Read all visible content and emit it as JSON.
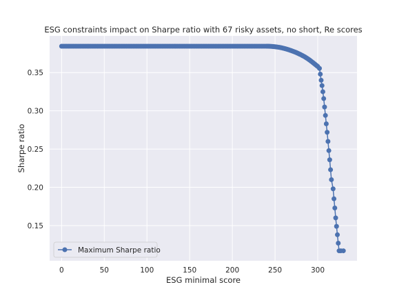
{
  "chart_data": {
    "type": "line",
    "title": "ESG constraints impact on Sharpe ratio with 67 risky assets, no short, Re scores",
    "xlabel": "ESG minimal score",
    "ylabel": "Sharpe ratio",
    "xlim": [
      -14,
      346
    ],
    "ylim": [
      0.104,
      0.398
    ],
    "x_ticks": [
      0,
      50,
      100,
      150,
      200,
      250,
      300
    ],
    "y_ticks": [
      0.15,
      0.2,
      0.25,
      0.3,
      0.35
    ],
    "y_tick_labels": [
      "0.15",
      "0.20",
      "0.25",
      "0.30",
      "0.35"
    ],
    "grid": true,
    "legend_position": "lower-left",
    "background": "#eaeaf2",
    "line_color": "#4c72b0",
    "series": [
      {
        "name": "Maximum Sharpe ratio",
        "marker": "circle",
        "points": [
          [
            0,
            0.3845
          ],
          [
            10,
            0.3845
          ],
          [
            20,
            0.3845
          ],
          [
            30,
            0.3845
          ],
          [
            40,
            0.3845
          ],
          [
            50,
            0.3845
          ],
          [
            60,
            0.3845
          ],
          [
            70,
            0.3845
          ],
          [
            80,
            0.3845
          ],
          [
            90,
            0.3845
          ],
          [
            100,
            0.3845
          ],
          [
            110,
            0.3845
          ],
          [
            120,
            0.3845
          ],
          [
            130,
            0.3845
          ],
          [
            140,
            0.3845
          ],
          [
            150,
            0.3845
          ],
          [
            160,
            0.3845
          ],
          [
            170,
            0.3845
          ],
          [
            180,
            0.3845
          ],
          [
            190,
            0.3845
          ],
          [
            200,
            0.3845
          ],
          [
            210,
            0.3845
          ],
          [
            220,
            0.3845
          ],
          [
            230,
            0.3845
          ],
          [
            240,
            0.3845
          ],
          [
            245,
            0.3843
          ],
          [
            250,
            0.3838
          ],
          [
            255,
            0.383
          ],
          [
            260,
            0.3818
          ],
          [
            265,
            0.3802
          ],
          [
            270,
            0.3783
          ],
          [
            275,
            0.3761
          ],
          [
            280,
            0.3735
          ],
          [
            285,
            0.3705
          ],
          [
            290,
            0.3668
          ],
          [
            295,
            0.3625
          ],
          [
            300,
            0.358
          ],
          [
            302,
            0.3555
          ],
          [
            303,
            0.348
          ],
          [
            304,
            0.34
          ],
          [
            305,
            0.333
          ],
          [
            306,
            0.325
          ],
          [
            307,
            0.316
          ],
          [
            308,
            0.305
          ],
          [
            309,
            0.294
          ],
          [
            310,
            0.283
          ],
          [
            311,
            0.272
          ],
          [
            312,
            0.26
          ],
          [
            313,
            0.248
          ],
          [
            314,
            0.236
          ],
          [
            315,
            0.223
          ],
          [
            316,
            0.21
          ],
          [
            318,
            0.198
          ],
          [
            319,
            0.185
          ],
          [
            320,
            0.173
          ],
          [
            321,
            0.16
          ],
          [
            322,
            0.149
          ],
          [
            323,
            0.138
          ],
          [
            324,
            0.127
          ],
          [
            325,
            0.117
          ],
          [
            327,
            0.117
          ],
          [
            330,
            0.117
          ]
        ]
      }
    ]
  }
}
